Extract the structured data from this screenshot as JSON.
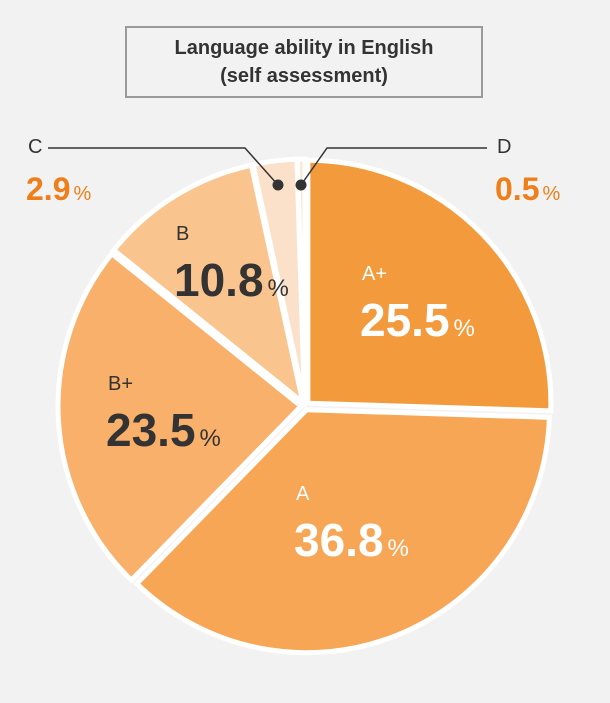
{
  "title_line1": "Language ability in English",
  "title_line2": "(self assessment)",
  "colors": {
    "background": "#f2f2f2",
    "outside_label": "#ee7f1a",
    "dark_text": "#333333",
    "white_text": "#ffffff",
    "leader": "#333333"
  },
  "chart_data": {
    "type": "pie",
    "title": "Language ability in English (self assessment)",
    "start": "12 o'clock, clockwise",
    "slices": [
      {
        "label": "A+",
        "value": 25.5,
        "value_text": "25.5",
        "unit": "%",
        "color": "#f39a3c"
      },
      {
        "label": "A",
        "value": 36.8,
        "value_text": "36.8",
        "unit": "%",
        "color": "#f7a655"
      },
      {
        "label": "B+",
        "value": 23.5,
        "value_text": "23.5",
        "unit": "%",
        "color": "#f8b06a"
      },
      {
        "label": "B",
        "value": 10.8,
        "value_text": "10.8",
        "unit": "%",
        "color": "#fac48e"
      },
      {
        "label": "C",
        "value": 2.9,
        "value_text": "2.9",
        "unit": "%",
        "color": "#fbe1ca"
      },
      {
        "label": "D",
        "value": 0.5,
        "value_text": "0.5",
        "unit": "%",
        "color": "#fde6d2"
      }
    ]
  }
}
